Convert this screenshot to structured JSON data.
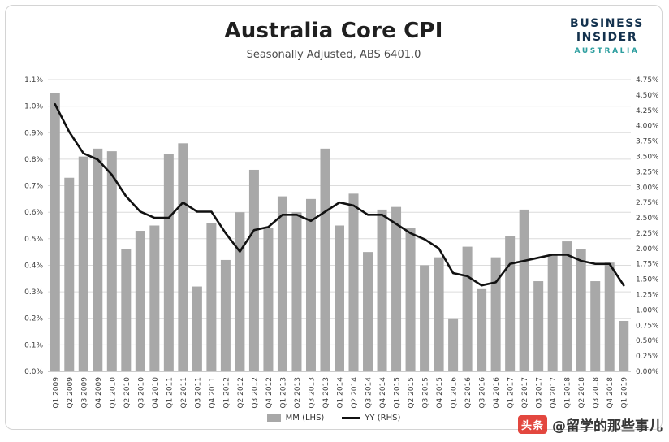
{
  "header": {
    "title": "Australia Core CPI",
    "subtitle": "Seasonally Adjusted, ABS 6401.0"
  },
  "logo": {
    "line1": "BUSINESS",
    "line2": "INSIDER",
    "line3": "AUSTRALIA",
    "navy": "#14324e",
    "teal": "#2f9fa0"
  },
  "legend": {
    "items": [
      {
        "label": "MM (LHS)",
        "swatch": "bar-swatch",
        "color": "#a8a8a8"
      },
      {
        "label": "YY (RHS)",
        "swatch": "line-swatch",
        "color": "#111111"
      }
    ]
  },
  "watermark": {
    "badge": "头条",
    "text": "@留学的那些事儿"
  },
  "chart_data": {
    "type": "bar+line",
    "title": "Australia Core CPI",
    "subtitle": "Seasonally Adjusted, ABS 6401.0",
    "categories": [
      "Q1 2009",
      "Q2 2009",
      "Q3 2009",
      "Q4 2009",
      "Q1 2010",
      "Q2 2010",
      "Q3 2010",
      "Q4 2010",
      "Q1 2011",
      "Q2 2011",
      "Q3 2011",
      "Q4 2011",
      "Q1 2012",
      "Q2 2012",
      "Q3 2012",
      "Q4 2012",
      "Q1 2013",
      "Q2 2013",
      "Q3 2013",
      "Q4 2013",
      "Q1 2014",
      "Q2 2014",
      "Q3 2014",
      "Q4 2014",
      "Q1 2015",
      "Q2 2015",
      "Q3 2015",
      "Q4 2015",
      "Q1 2016",
      "Q2 2016",
      "Q3 2016",
      "Q4 2016",
      "Q1 2017",
      "Q2 2017",
      "Q3 2017",
      "Q4 2017",
      "Q1 2018",
      "Q2 2018",
      "Q3 2018",
      "Q4 2018",
      "Q1 2019"
    ],
    "series": [
      {
        "name": "MM (LHS)",
        "type": "bar",
        "axis": "left",
        "unit": "%",
        "values": [
          1.05,
          0.73,
          0.81,
          0.84,
          0.83,
          0.46,
          0.53,
          0.55,
          0.82,
          0.86,
          0.32,
          0.56,
          0.42,
          0.6,
          0.76,
          0.54,
          0.66,
          0.6,
          0.65,
          0.84,
          0.55,
          0.67,
          0.45,
          0.61,
          0.62,
          0.54,
          0.4,
          0.43,
          0.2,
          0.47,
          0.31,
          0.43,
          0.51,
          0.61,
          0.34,
          0.44,
          0.49,
          0.46,
          0.34,
          0.41,
          0.19
        ]
      },
      {
        "name": "YY (RHS)",
        "type": "line",
        "axis": "right",
        "unit": "%",
        "values": [
          4.35,
          3.9,
          3.55,
          3.45,
          3.2,
          2.85,
          2.6,
          2.5,
          2.5,
          2.75,
          2.6,
          2.6,
          2.25,
          1.95,
          2.3,
          2.35,
          2.55,
          2.55,
          2.45,
          2.6,
          2.75,
          2.7,
          2.55,
          2.55,
          2.4,
          2.25,
          2.15,
          2.0,
          1.6,
          1.55,
          1.4,
          1.45,
          1.75,
          1.8,
          1.85,
          1.9,
          1.9,
          1.8,
          1.75,
          1.75,
          1.4
        ]
      }
    ],
    "left_axis": {
      "min": 0,
      "max": 1.1,
      "tick_step": 0.1,
      "ticks": [
        "0.0%",
        "0.1%",
        "0.2%",
        "0.3%",
        "0.4%",
        "0.5%",
        "0.6%",
        "0.7%",
        "0.8%",
        "0.9%",
        "1.0%",
        "1.1%"
      ]
    },
    "right_axis": {
      "min": 0,
      "max": 4.75,
      "tick_step": 0.25,
      "ticks": [
        "0.00%",
        "0.25%",
        "0.50%",
        "0.75%",
        "1.00%",
        "1.25%",
        "1.50%",
        "1.75%",
        "2.00%",
        "2.25%",
        "2.50%",
        "2.75%",
        "3.00%",
        "3.25%",
        "3.50%",
        "3.75%",
        "4.00%",
        "4.25%",
        "4.50%",
        "4.75%"
      ]
    },
    "grid": true,
    "legend_position": "bottom",
    "bar_color": "#a8a8a8",
    "line_color": "#111111"
  }
}
